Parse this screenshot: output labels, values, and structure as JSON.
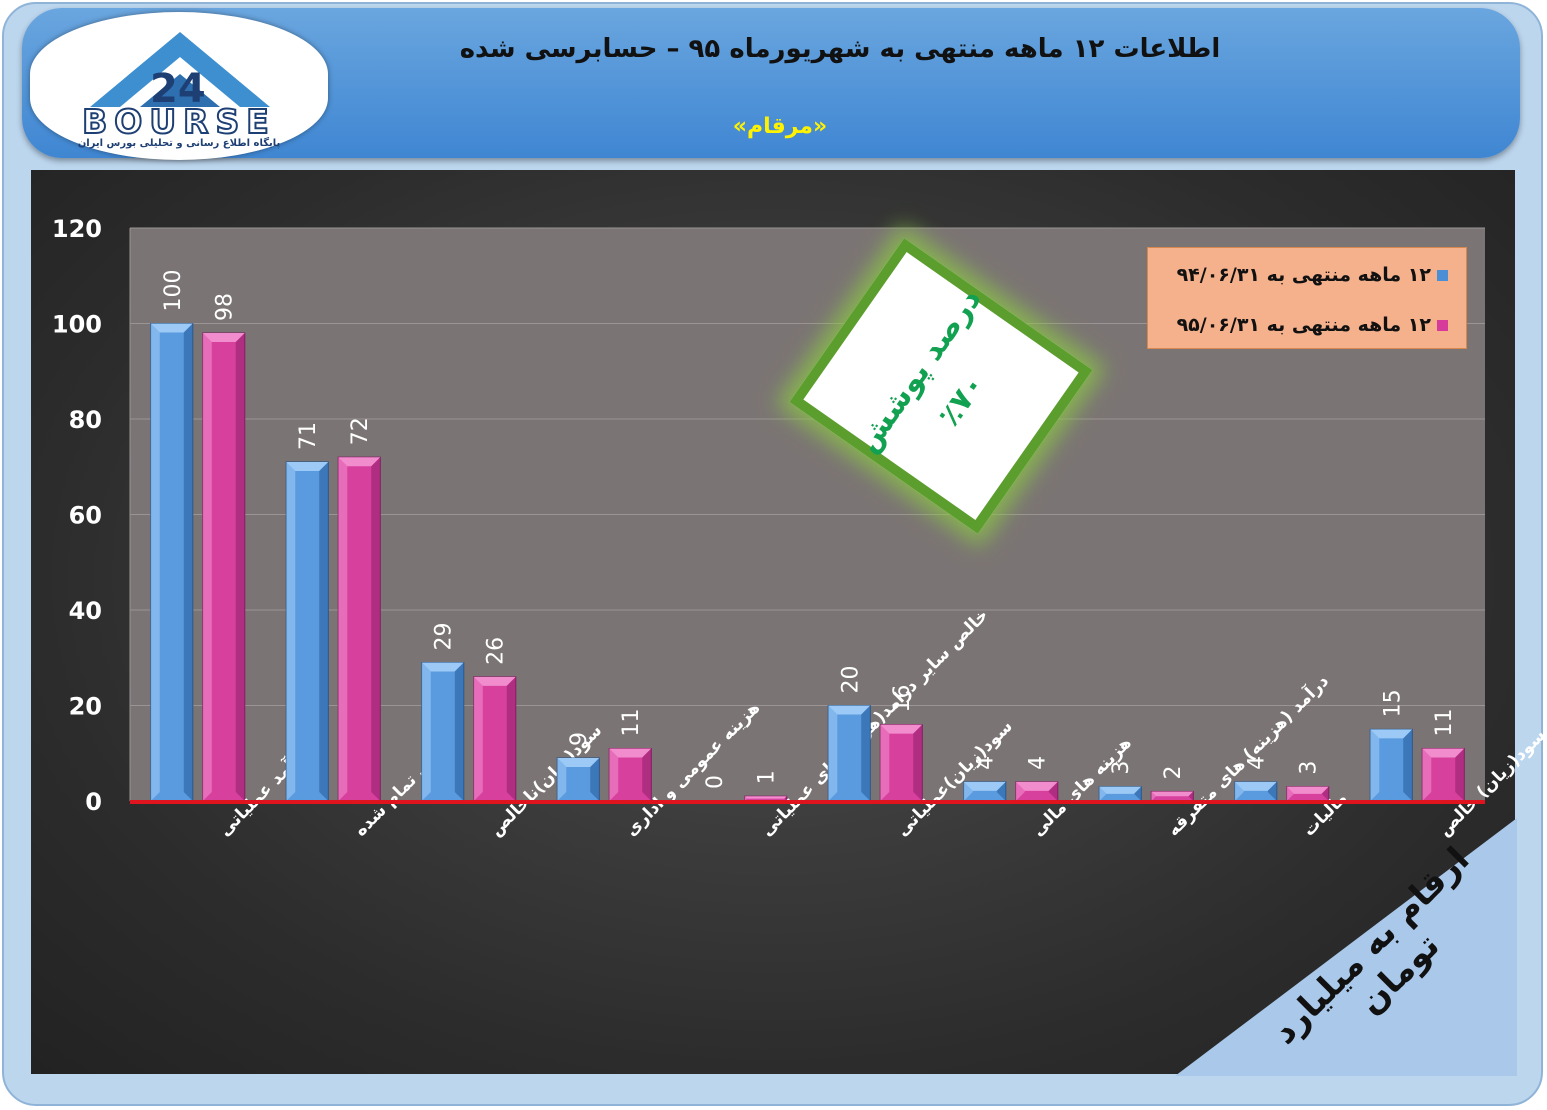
{
  "header": {
    "title": "اطلاعات ۱۲ ماهه منتهی به شهریورماه ۹۵ – حسابرسی شده",
    "subtitle": "«مرقام»",
    "logo_text": "BOURSE",
    "logo_subtitle": "پایگاه اطلاع رسانی و تحلیلی بورس ایران",
    "colors": {
      "header_bg": "#4a8fd6",
      "subtitle": "#fff200"
    }
  },
  "badge": {
    "line1": "درصد پوشش",
    "line2": "٪۷۰"
  },
  "unit_label": "ارقام به میلیارد تومان",
  "legend": {
    "placement": "top-right",
    "items": [
      {
        "label": "۱۲ ماهه منتهی به ۹۴/۰۶/۳۱",
        "color": "#4a8fd6"
      },
      {
        "label": "۱۲ ماهه منتهی به ۹۵/۰۶/۳۱",
        "color": "#d63a9a"
      }
    ]
  },
  "chart_data": {
    "type": "bar",
    "categories": [
      "درآمد عملیاتی",
      "بهای تمام شده",
      "سود(زیان)ناخالص",
      "هزینه عمومی و اداری",
      "خالص سایر درامد(هزینه)های عملیاتی",
      "سود(زیان)عملیاتی",
      "هزینه های مالی",
      "درآمد (هزینه) های متفرقه",
      "مالیات",
      "سود(زیان) خالص"
    ],
    "series": [
      {
        "name": "۱۲ ماهه منتهی به ۹۴/۰۶/۳۱",
        "values": [
          100,
          71,
          29,
          9,
          0,
          20,
          4,
          3,
          4,
          15
        ],
        "color": "#4a8fd6"
      },
      {
        "name": "۱۲ ماهه منتهی به ۹۵/۰۶/۳۱",
        "values": [
          98,
          72,
          26,
          11,
          1,
          16,
          4,
          2,
          3,
          11
        ],
        "color": "#d63a9a"
      }
    ],
    "title": "",
    "xlabel": "",
    "ylabel": "",
    "ylim": [
      0,
      120
    ],
    "yticks": [
      0,
      20,
      40,
      60,
      80,
      100,
      120
    ],
    "grid": true
  }
}
